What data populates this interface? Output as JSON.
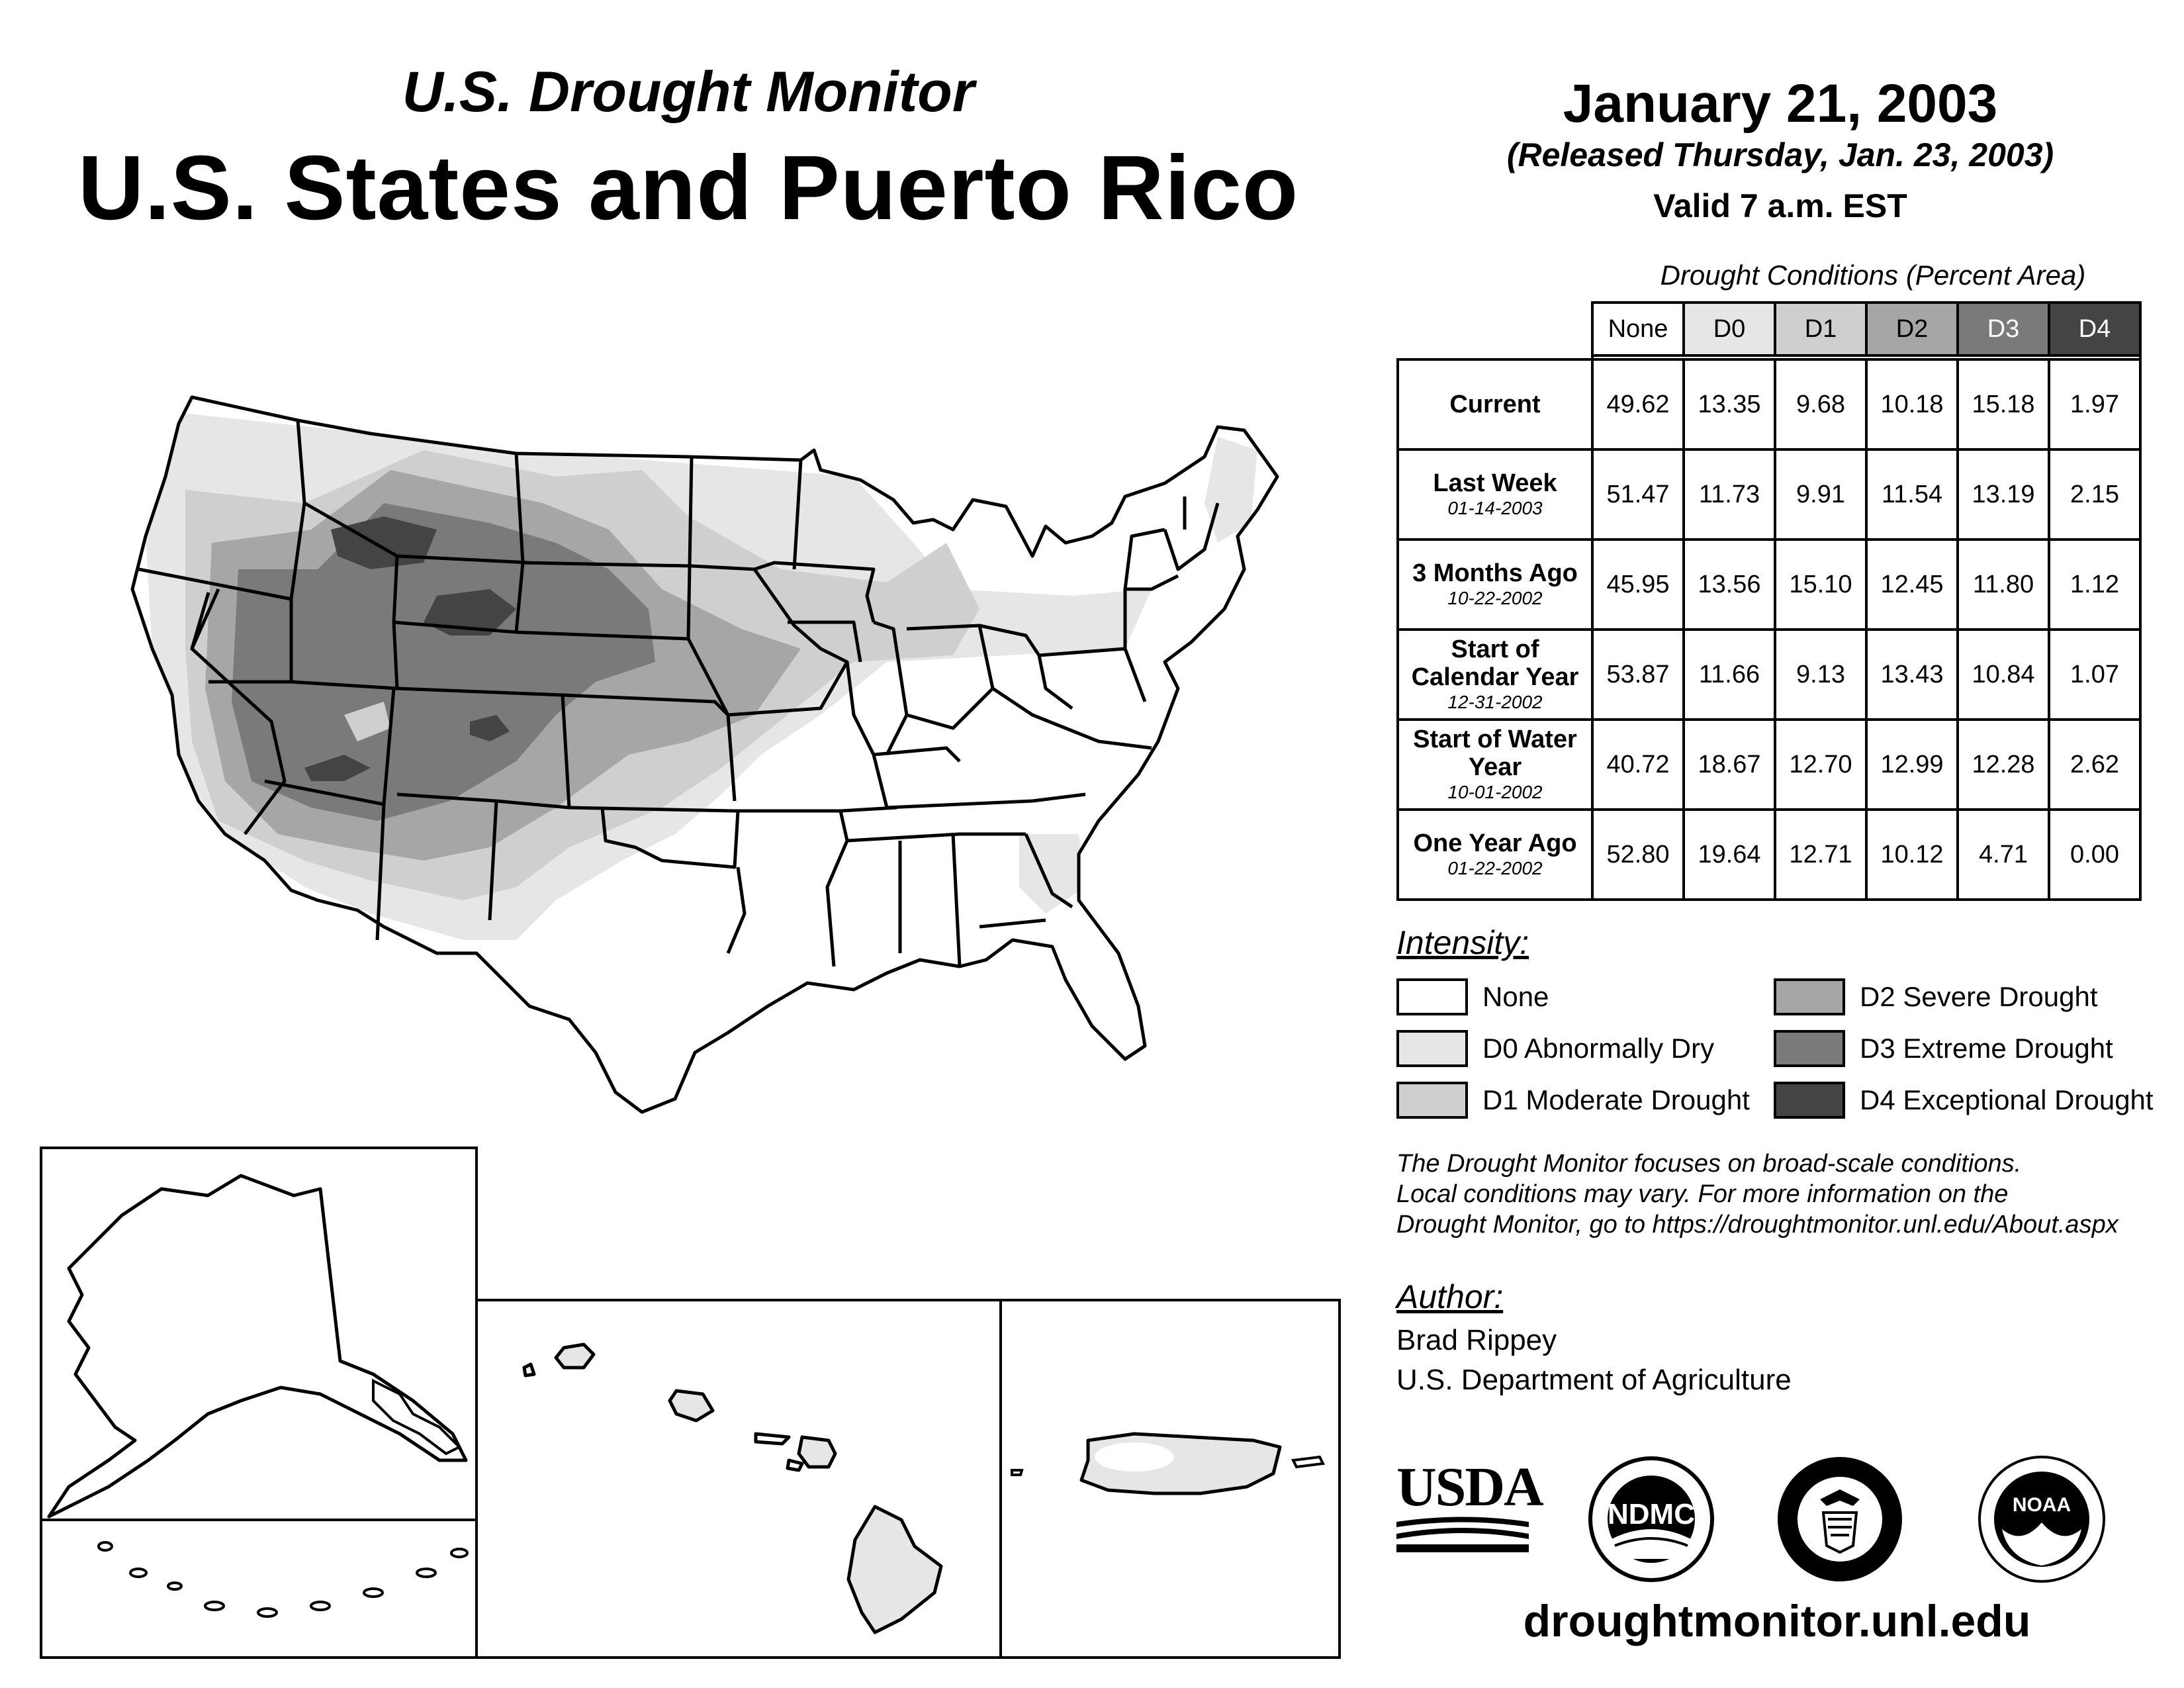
{
  "header": {
    "subtitle": "U.S. Drought Monitor",
    "title": "U.S. States and Puerto Rico",
    "date": "January 21, 2003",
    "released": "(Released Thursday, Jan. 23, 2003)",
    "valid": "Valid 7 a.m. EST"
  },
  "table": {
    "caption": "Drought Conditions (Percent Area)",
    "columns": [
      "None",
      "D0",
      "D1",
      "D2",
      "D3",
      "D4"
    ],
    "rows": [
      {
        "label": "Current",
        "date": "",
        "values": [
          "49.62",
          "13.35",
          "9.68",
          "10.18",
          "15.18",
          "1.97"
        ]
      },
      {
        "label": "Last Week",
        "date": "01-14-2003",
        "values": [
          "51.47",
          "11.73",
          "9.91",
          "11.54",
          "13.19",
          "2.15"
        ]
      },
      {
        "label": "3 Months Ago",
        "date": "10-22-2002",
        "values": [
          "45.95",
          "13.56",
          "15.10",
          "12.45",
          "11.80",
          "1.12"
        ]
      },
      {
        "label": "Start of Calendar Year",
        "date": "12-31-2002",
        "values": [
          "53.87",
          "11.66",
          "9.13",
          "13.43",
          "10.84",
          "1.07"
        ]
      },
      {
        "label": "Start of Water Year",
        "date": "10-01-2002",
        "values": [
          "40.72",
          "18.67",
          "12.70",
          "12.99",
          "12.28",
          "2.62"
        ]
      },
      {
        "label": "One Year Ago",
        "date": "01-22-2002",
        "values": [
          "52.80",
          "19.64",
          "12.71",
          "10.12",
          "4.71",
          "0.00"
        ]
      }
    ]
  },
  "legend": {
    "title": "Intensity:",
    "items": [
      {
        "label": "None",
        "color": "#ffffff"
      },
      {
        "label": "D0 Abnormally Dry",
        "color": "#e6e6e6"
      },
      {
        "label": "D1 Moderate Drought",
        "color": "#cfcfcf"
      },
      {
        "label": "D2 Severe Drought",
        "color": "#a6a6a6"
      },
      {
        "label": "D3 Extreme Drought",
        "color": "#7a7a7a"
      },
      {
        "label": "D4 Exceptional Drought",
        "color": "#444444"
      }
    ]
  },
  "note": {
    "line1": "The Drought Monitor focuses on broad-scale conditions.",
    "line2": "Local conditions may vary. For more information on the",
    "line3": "Drought Monitor, go to https://droughtmonitor.unl.edu/About.aspx"
  },
  "author": {
    "title": "Author:",
    "name": "Brad Rippey",
    "org": "U.S. Department of Agriculture"
  },
  "logos": {
    "usda": "USDA",
    "ndmc": "NDMC",
    "noaa": "NOAA"
  },
  "footer": {
    "url": "droughtmonitor.unl.edu"
  }
}
